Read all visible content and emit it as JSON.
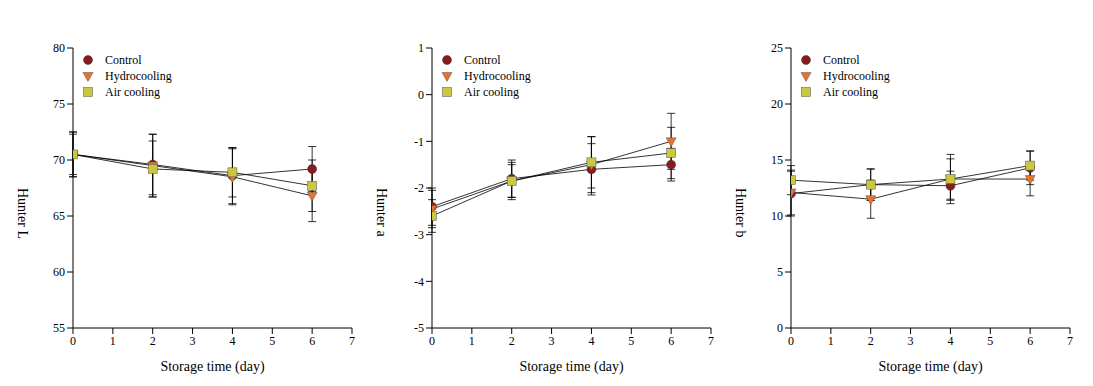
{
  "chart_data": [
    {
      "type": "line",
      "x_label": "Storage time (day)",
      "y_label": "Hunter L",
      "x": [
        0,
        2,
        4,
        6
      ],
      "xlim": [
        0,
        7
      ],
      "xticks": [
        0,
        1,
        2,
        3,
        4,
        5,
        6,
        7
      ],
      "ylim": [
        55,
        80
      ],
      "yticks": [
        55,
        60,
        65,
        70,
        75,
        80
      ],
      "legend": "upper left",
      "grid": false,
      "series": [
        {
          "name": "Control",
          "color": "#8b1a1a",
          "marker": "circle",
          "values": [
            70.5,
            69.6,
            68.6,
            69.2
          ],
          "errors": [
            1.8,
            2.7,
            2.5,
            2.0
          ]
        },
        {
          "name": "Hydrocooling",
          "color": "#e8742a",
          "marker": "triangle_down",
          "values": [
            70.5,
            69.5,
            68.5,
            66.8
          ],
          "errors": [
            2.0,
            2.8,
            2.5,
            2.3
          ]
        },
        {
          "name": "Air cooling",
          "color": "#c9c83e",
          "marker": "square",
          "values": [
            70.5,
            69.2,
            68.9,
            67.7
          ],
          "errors": [
            2.0,
            2.5,
            2.2,
            2.3
          ]
        }
      ]
    },
    {
      "type": "line",
      "x_label": "Storage time (day)",
      "y_label": "Hunter a",
      "x": [
        0,
        2,
        4,
        6
      ],
      "xlim": [
        0,
        7
      ],
      "xticks": [
        0,
        1,
        2,
        3,
        4,
        5,
        6,
        7
      ],
      "ylim": [
        -5,
        1
      ],
      "yticks": [
        -5,
        -4,
        -3,
        -2,
        -1,
        0,
        1
      ],
      "legend": "upper left",
      "grid": false,
      "series": [
        {
          "name": "Control",
          "color": "#8b1a1a",
          "marker": "circle",
          "values": [
            -2.4,
            -1.8,
            -1.6,
            -1.5
          ],
          "errors": [
            0.4,
            0.4,
            0.55,
            0.35
          ]
        },
        {
          "name": "Hydrocooling",
          "color": "#e8742a",
          "marker": "triangle_down",
          "values": [
            -2.45,
            -1.85,
            -1.5,
            -1.0
          ],
          "errors": [
            0.4,
            0.4,
            0.6,
            0.6
          ]
        },
        {
          "name": "Air cooling",
          "color": "#c9c83e",
          "marker": "square",
          "values": [
            -2.6,
            -1.85,
            -1.45,
            -1.25
          ],
          "errors": [
            0.35,
            0.35,
            0.55,
            0.55
          ]
        }
      ]
    },
    {
      "type": "line",
      "x_label": "Storage time (day)",
      "y_label": "Hunter b",
      "x": [
        0,
        2,
        4,
        6
      ],
      "xlim": [
        0,
        7
      ],
      "xticks": [
        0,
        1,
        2,
        3,
        4,
        5,
        6,
        7
      ],
      "ylim": [
        0,
        25
      ],
      "yticks": [
        0,
        5,
        10,
        15,
        20,
        25
      ],
      "legend": "upper left",
      "grid": false,
      "series": [
        {
          "name": "Control",
          "color": "#8b1a1a",
          "marker": "circle",
          "values": [
            12.0,
            12.8,
            12.7,
            14.3
          ],
          "errors": [
            2.0,
            1.4,
            1.3,
            1.5
          ]
        },
        {
          "name": "Hydrocooling",
          "color": "#e8742a",
          "marker": "triangle_down",
          "values": [
            12.1,
            11.5,
            13.3,
            13.3
          ],
          "errors": [
            2.0,
            1.7,
            2.2,
            1.5
          ]
        },
        {
          "name": "Air cooling",
          "color": "#c9c83e",
          "marker": "square",
          "values": [
            13.2,
            12.8,
            13.3,
            14.5
          ],
          "errors": [
            1.3,
            1.4,
            1.8,
            1.3
          ]
        }
      ]
    }
  ]
}
